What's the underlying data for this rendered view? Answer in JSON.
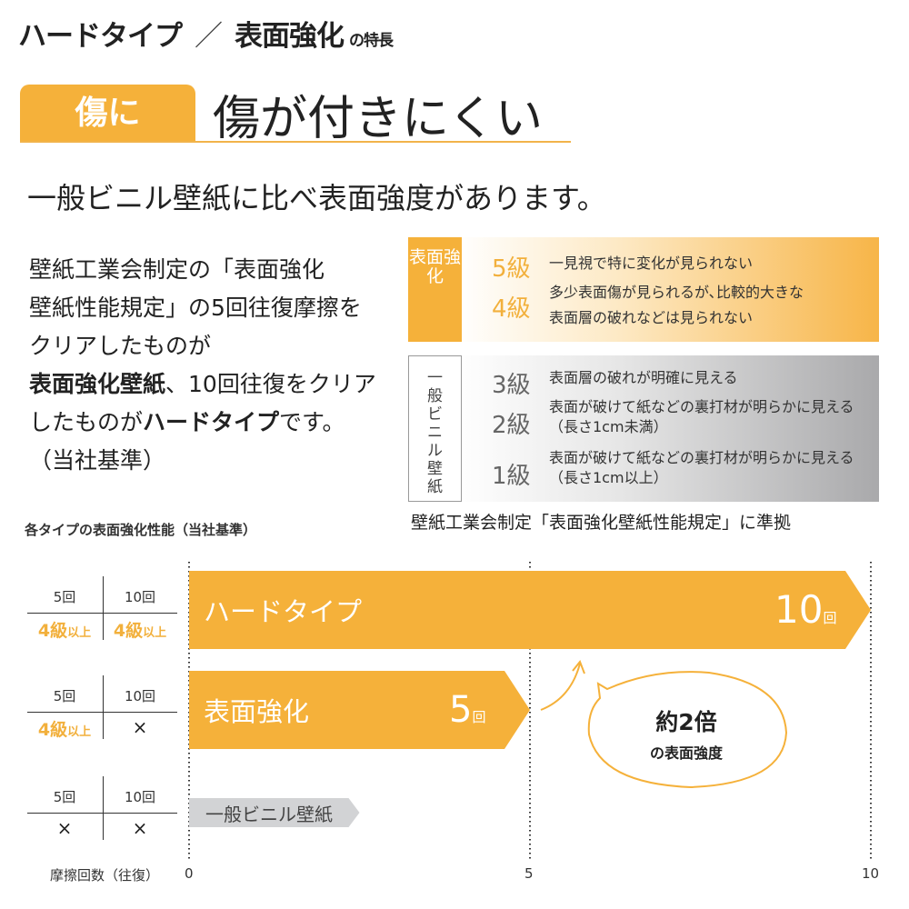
{
  "title": {
    "part1": "ハードタイプ",
    "slash": "／",
    "part2": "表面強化",
    "suffix": "の特長"
  },
  "tab_label": "傷に",
  "headline": "傷が付きにくい",
  "lead": "一般ビニル壁紙に比べ表面強度があります。",
  "paragraph": {
    "l1": "壁紙工業会制定の「表面強化",
    "l2": "壁紙性能規定」の5回往復摩擦を",
    "l3": "クリアしたものが",
    "l4_bold": "表面強化壁紙",
    "l4_rest": "、10回往復をクリア",
    "l5_a": "したものが",
    "l5_bold": "ハードタイプ",
    "l5_b": "です。",
    "l6": "（当社基準）"
  },
  "grades": {
    "orange_label": "表面強化",
    "orange": [
      {
        "grade": "5級",
        "desc": [
          "一見視で特に変化が見られない"
        ]
      },
      {
        "grade": "4級",
        "desc": [
          "多少表面傷が見られるが､比較的大きな",
          "表面層の破れなどは見られない"
        ]
      }
    ],
    "gray_label": "一般ビニル壁紙",
    "gray": [
      {
        "grade": "3級",
        "desc": [
          "表面層の破れが明確に見える"
        ]
      },
      {
        "grade": "2級",
        "desc": [
          "表面が破けて紙などの裏打材が明らかに見える",
          "（長さ1cm未満）"
        ]
      },
      {
        "grade": "1級",
        "desc": [
          "表面が破けて紙などの裏打材が明らかに見える",
          "（長さ1cm以上）"
        ]
      }
    ],
    "caption": "壁紙工業会制定「表面強化壁紙性能規定」に準拠"
  },
  "colors": {
    "accent": "#F5B13A",
    "gray_bar": "#D2D3D5"
  },
  "chart_data": {
    "type": "bar",
    "orientation": "horizontal",
    "title": "各タイプの表面強化性能（当社基準）",
    "xlabel": "摩擦回数（往復）",
    "xlim": [
      0,
      10
    ],
    "xticks": [
      "0",
      "5",
      "10"
    ],
    "grid": "dotted vertical at ticks",
    "categories": [
      "ハードタイプ",
      "表面強化",
      "一般ビニル壁紙"
    ],
    "values": [
      10,
      5,
      2.5
    ],
    "data_labels": [
      {
        "num": "10",
        "unit": "回"
      },
      {
        "num": "5",
        "unit": "回"
      },
      null
    ],
    "tables": [
      {
        "h": [
          "5回",
          "10回"
        ],
        "v": [
          {
            "main": "4級",
            "sub": "以上"
          },
          {
            "main": "4級",
            "sub": "以上"
          }
        ]
      },
      {
        "h": [
          "5回",
          "10回"
        ],
        "v": [
          {
            "main": "4級",
            "sub": "以上"
          },
          {
            "main": "×",
            "sub": ""
          }
        ]
      },
      {
        "h": [
          "5回",
          "10回"
        ],
        "v": [
          {
            "main": "×",
            "sub": ""
          },
          {
            "main": "×",
            "sub": ""
          }
        ]
      }
    ],
    "annotation": {
      "l1": "約2倍",
      "l2": "の表面強度"
    }
  }
}
